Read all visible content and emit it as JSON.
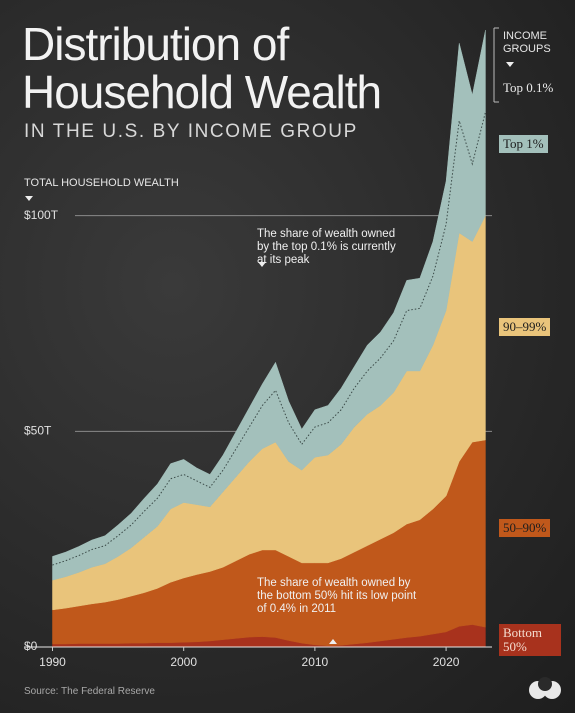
{
  "chart_data": {
    "type": "stacked_area",
    "title": "Distribution of Household Wealth",
    "subtitle": "IN THE U.S. BY INCOME GROUP",
    "y_label": "TOTAL HOUSEHOLD WEALTH",
    "legend_title": "INCOME GROUPS",
    "source": "Source: The Federal Reserve",
    "annotations": [
      "The share of wealth owned by the top 0.1% is currently at its peak",
      "The share of wealth owned by the bottom 50% hit its low point of 0.4% in 2011"
    ],
    "x": [
      1990,
      1991,
      1992,
      1993,
      1994,
      1995,
      1996,
      1997,
      1998,
      1999,
      2000,
      2001,
      2002,
      2003,
      2004,
      2005,
      2006,
      2007,
      2008,
      2009,
      2010,
      2011,
      2012,
      2013,
      2014,
      2015,
      2016,
      2017,
      2018,
      2019,
      2020,
      2021,
      2022,
      2023
    ],
    "xlim": [
      1989.2,
      2023.5
    ],
    "xticks": [
      1990,
      2000,
      2010,
      2020
    ],
    "ylim": [
      0,
      150
    ],
    "yticks": [
      {
        "value": 0,
        "label": "$0"
      },
      {
        "value": 50,
        "label": "$50T"
      },
      {
        "value": 100,
        "label": "$100T"
      }
    ],
    "grid": true,
    "series": [
      {
        "name": "Bottom 50%",
        "color": "#a8321d",
        "values": [
          0.7,
          0.7,
          0.8,
          0.8,
          0.8,
          0.8,
          0.9,
          0.9,
          1.0,
          1.0,
          1.1,
          1.2,
          1.4,
          1.7,
          2.0,
          2.3,
          2.4,
          2.2,
          1.5,
          0.9,
          0.5,
          0.3,
          0.4,
          0.7,
          1.0,
          1.4,
          1.8,
          2.2,
          2.5,
          3.0,
          3.5,
          4.8,
          5.2,
          4.6
        ]
      },
      {
        "name": "50–90%",
        "color": "#c0581b",
        "values": [
          7.9,
          8.3,
          8.7,
          9.2,
          9.6,
          10.2,
          10.9,
          11.7,
          12.6,
          14.0,
          14.9,
          15.6,
          16.1,
          16.8,
          18.0,
          19.2,
          20.1,
          20.3,
          19.5,
          18.6,
          19.0,
          19.2,
          20.1,
          21.3,
          22.5,
          23.6,
          24.7,
          26.3,
          27.0,
          29.0,
          31.5,
          38.2,
          42.3,
          43.4
        ]
      },
      {
        "name": "90–99%",
        "color": "#e9c47b",
        "values": [
          6.9,
          7.3,
          7.8,
          8.5,
          8.9,
          10.0,
          11.2,
          12.9,
          14.4,
          17.0,
          17.5,
          16.2,
          15.0,
          17.5,
          19.5,
          21.5,
          23.5,
          25.0,
          22.0,
          21.5,
          24.5,
          25.0,
          26.5,
          29.0,
          30.5,
          31.0,
          32.5,
          35.5,
          34.5,
          38.0,
          43.0,
          53.0,
          46.5,
          52.0
        ]
      },
      {
        "name": "Top 1%",
        "color": "#a3c0bb",
        "values": [
          3.5,
          3.7,
          3.9,
          4.1,
          4.2,
          4.8,
          5.3,
          6.0,
          6.5,
          7.0,
          6.5,
          5.5,
          4.5,
          5.0,
          6.5,
          8.0,
          10.0,
          12.0,
          9.0,
          6.0,
          7.0,
          7.5,
          8.0,
          9.0,
          10.0,
          11.0,
          12.0,
          14.0,
          14.5,
          16.0,
          20.0,
          26.0,
          18.0,
          24.0
        ]
      },
      {
        "name": "Top 0.1%",
        "color": "#a3c0bb",
        "border": "dotted",
        "values": [
          2.0,
          2.0,
          2.1,
          2.2,
          2.3,
          2.5,
          2.7,
          3.0,
          3.3,
          3.5,
          3.5,
          3.0,
          3.0,
          3.5,
          4.0,
          4.5,
          5.0,
          6.5,
          5.0,
          3.5,
          4.0,
          4.0,
          5.0,
          5.0,
          6.0,
          6.0,
          6.5,
          7.0,
          7.0,
          8.0,
          10.0,
          18.0,
          16.0,
          19.0
        ]
      }
    ]
  }
}
